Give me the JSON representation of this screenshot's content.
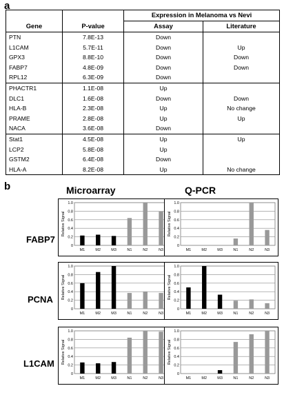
{
  "panel_a": {
    "letter": "a",
    "group_header": "Expression in Melanoma vs Nevi",
    "headers": {
      "gene": "Gene",
      "pvalue": "P-value",
      "assay": "Assay",
      "literature": "Literature"
    },
    "rows": [
      {
        "gene": "PTN",
        "pvalue": "7.8E-13",
        "assay": "Down",
        "literature": ""
      },
      {
        "gene": "L1CAM",
        "pvalue": "5.7E-11",
        "assay": "Down",
        "literature": "Up"
      },
      {
        "gene": "GPX3",
        "pvalue": "8.8E-10",
        "assay": "Down",
        "literature": "Down"
      },
      {
        "gene": "FABP7",
        "pvalue": "4.8E-09",
        "assay": "Down",
        "literature": "Down"
      },
      {
        "gene": "RPL12",
        "pvalue": "6.3E-09",
        "assay": "Down",
        "literature": ""
      },
      {
        "gene": "PHACTR1",
        "pvalue": "1.1E-08",
        "assay": "Up",
        "literature": ""
      },
      {
        "gene": "DLC1",
        "pvalue": "1.6E-08",
        "assay": "Down",
        "literature": "Down"
      },
      {
        "gene": "HLA-B",
        "pvalue": "2.3E-08",
        "assay": "Up",
        "literature": "No change"
      },
      {
        "gene": "PRAME",
        "pvalue": "2.8E-08",
        "assay": "Up",
        "literature": "Up"
      },
      {
        "gene": "NACA",
        "pvalue": "3.6E-08",
        "assay": "Down",
        "literature": ""
      },
      {
        "gene": "Stat1",
        "pvalue": "4.5E-08",
        "assay": "Up",
        "literature": "Up"
      },
      {
        "gene": "LCP2",
        "pvalue": "5.8E-08",
        "assay": "Up",
        "literature": ""
      },
      {
        "gene": "GSTM2",
        "pvalue": "6.4E-08",
        "assay": "Down",
        "literature": ""
      },
      {
        "gene": "HLA-A",
        "pvalue": "8.2E-08",
        "assay": "Up",
        "literature": "No change"
      }
    ]
  },
  "panel_b": {
    "letter": "b",
    "columns": [
      "Microarray",
      "Q-PCR"
    ],
    "rows": [
      "FABP7",
      "PCNA",
      "L1CAM"
    ]
  },
  "chart_data": [
    {
      "type": "bar",
      "gene": "FABP7",
      "method": "Microarray",
      "ylabel": "Relative Signal",
      "ylim": [
        0,
        1.0
      ],
      "yticks": [
        "0",
        "0.2",
        "0.4",
        "0.6",
        "0.8",
        "1.0"
      ],
      "categories": [
        "M1",
        "M2",
        "M3",
        "N1",
        "N2",
        "N3"
      ],
      "values": [
        0.23,
        0.25,
        0.22,
        0.64,
        1.0,
        0.79
      ],
      "colors": [
        "#000000",
        "#000000",
        "#000000",
        "#999999",
        "#999999",
        "#999999"
      ]
    },
    {
      "type": "bar",
      "gene": "FABP7",
      "method": "Q-PCR",
      "ylabel": "Relative Signal",
      "ylim": [
        0,
        1.0
      ],
      "yticks": [
        "0",
        "0.2",
        "0.4",
        "0.6",
        "0.8",
        "1.0"
      ],
      "categories": [
        "M1",
        "M2",
        "M3",
        "N1",
        "N2",
        "N3"
      ],
      "values": [
        0,
        0,
        0,
        0.16,
        1.0,
        0.36
      ],
      "colors": [
        "#000000",
        "#000000",
        "#000000",
        "#999999",
        "#999999",
        "#999999"
      ]
    },
    {
      "type": "bar",
      "gene": "PCNA",
      "method": "Microarray",
      "ylabel": "Relative Signal",
      "ylim": [
        0,
        1.0
      ],
      "yticks": [
        "0",
        "0.2",
        "0.4",
        "0.6",
        "0.8",
        "1.0"
      ],
      "categories": [
        "M1",
        "M2",
        "M3",
        "N1",
        "N2",
        "N3"
      ],
      "values": [
        0.6,
        0.86,
        1.0,
        0.37,
        0.4,
        0.37
      ],
      "colors": [
        "#000000",
        "#000000",
        "#000000",
        "#999999",
        "#999999",
        "#999999"
      ]
    },
    {
      "type": "bar",
      "gene": "PCNA",
      "method": "Q-PCR",
      "ylabel": "Relative Signal",
      "ylim": [
        0,
        1.0
      ],
      "yticks": [
        "0",
        "0.2",
        "0.4",
        "0.6",
        "0.8",
        "1.0"
      ],
      "categories": [
        "M1",
        "M2",
        "M3",
        "N1",
        "N2",
        "N3"
      ],
      "values": [
        0.5,
        1.0,
        0.33,
        0.19,
        0.22,
        0.13
      ],
      "colors": [
        "#000000",
        "#000000",
        "#000000",
        "#999999",
        "#999999",
        "#999999"
      ]
    },
    {
      "type": "bar",
      "gene": "L1CAM",
      "method": "Microarray",
      "ylabel": "Relative Signal",
      "ylim": [
        0,
        1.0
      ],
      "yticks": [
        "0",
        "0.2",
        "0.4",
        "0.6",
        "0.8",
        "1.0"
      ],
      "categories": [
        "M1",
        "M2",
        "M3",
        "N1",
        "N2",
        "N3"
      ],
      "values": [
        0.26,
        0.24,
        0.27,
        0.84,
        1.0,
        0.98
      ],
      "colors": [
        "#000000",
        "#000000",
        "#000000",
        "#999999",
        "#999999",
        "#999999"
      ]
    },
    {
      "type": "bar",
      "gene": "L1CAM",
      "method": "Q-PCR",
      "ylabel": "Relative Signal",
      "ylim": [
        0,
        1.0
      ],
      "yticks": [
        "0",
        "0.2",
        "0.4",
        "0.6",
        "0.8",
        "1.0"
      ],
      "categories": [
        "M1",
        "M2",
        "M3",
        "N1",
        "N2",
        "N3"
      ],
      "values": [
        0,
        0,
        0.08,
        0.74,
        0.92,
        1.0
      ],
      "colors": [
        "#000000",
        "#000000",
        "#000000",
        "#999999",
        "#999999",
        "#999999"
      ]
    }
  ]
}
